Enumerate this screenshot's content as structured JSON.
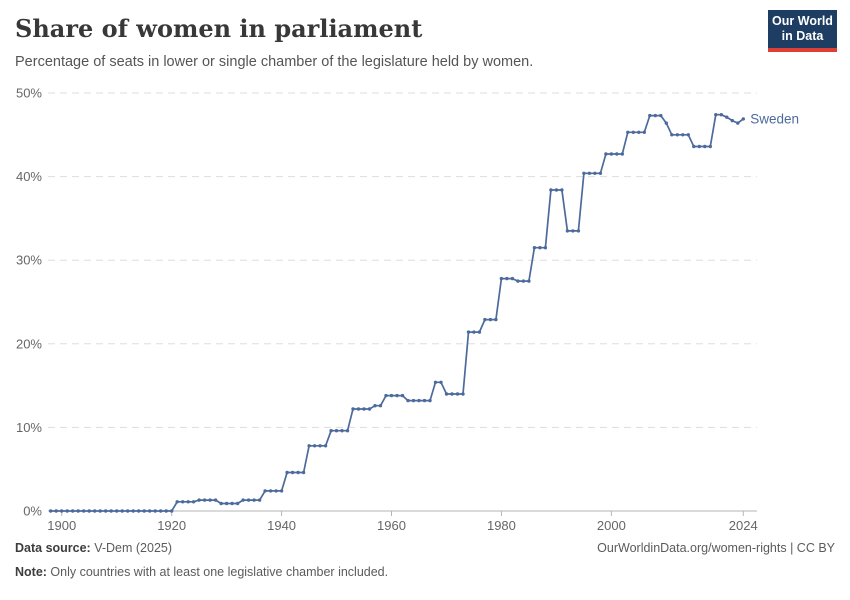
{
  "header": {
    "title": "Share of women in parliament",
    "subtitle": "Percentage of seats in lower or single chamber of the legislature held by women."
  },
  "logo": {
    "line1": "Our World",
    "line2": "in Data",
    "bg_color": "#1d3d63",
    "bar_color": "#dc3f34"
  },
  "footer": {
    "source_label": "Data source:",
    "source_value": " V-Dem (2025)",
    "note_label": "Note:",
    "note_value": " Only countries with at least one legislative chamber included.",
    "right_text": "OurWorldinData.org/women-rights | CC BY"
  },
  "chart_data": {
    "type": "line",
    "title": "Share of women in parliament",
    "xlabel": "",
    "ylabel": "",
    "xlim": [
      1897.5,
      2026.5
    ],
    "ylim": [
      0,
      50
    ],
    "x_ticks": [
      1900,
      1920,
      1940,
      1960,
      1980,
      2000,
      2024
    ],
    "y_ticks": [
      0,
      10,
      20,
      30,
      40,
      50
    ],
    "y_tick_suffix": "%",
    "grid": "dashed-horizontal",
    "legend_position": "end-of-line-label",
    "colors": {
      "line": "#4c6a9c",
      "grid": "#dddddd",
      "axis": "#b5b5b5",
      "tick_text": "#666666"
    },
    "series": [
      {
        "name": "Sweden",
        "points": [
          [
            1898,
            0
          ],
          [
            1899,
            0
          ],
          [
            1900,
            0
          ],
          [
            1901,
            0
          ],
          [
            1902,
            0
          ],
          [
            1903,
            0
          ],
          [
            1904,
            0
          ],
          [
            1905,
            0
          ],
          [
            1906,
            0
          ],
          [
            1907,
            0
          ],
          [
            1908,
            0
          ],
          [
            1909,
            0
          ],
          [
            1910,
            0
          ],
          [
            1911,
            0
          ],
          [
            1912,
            0
          ],
          [
            1913,
            0
          ],
          [
            1914,
            0
          ],
          [
            1915,
            0
          ],
          [
            1916,
            0
          ],
          [
            1917,
            0
          ],
          [
            1918,
            0
          ],
          [
            1919,
            0
          ],
          [
            1920,
            0
          ],
          [
            1921,
            1.1
          ],
          [
            1922,
            1.1
          ],
          [
            1923,
            1.1
          ],
          [
            1924,
            1.1
          ],
          [
            1925,
            1.3
          ],
          [
            1926,
            1.3
          ],
          [
            1927,
            1.3
          ],
          [
            1928,
            1.3
          ],
          [
            1929,
            0.9
          ],
          [
            1930,
            0.9
          ],
          [
            1931,
            0.9
          ],
          [
            1932,
            0.9
          ],
          [
            1933,
            1.3
          ],
          [
            1934,
            1.3
          ],
          [
            1935,
            1.3
          ],
          [
            1936,
            1.3
          ],
          [
            1937,
            2.4
          ],
          [
            1938,
            2.4
          ],
          [
            1939,
            2.4
          ],
          [
            1940,
            2.4
          ],
          [
            1941,
            4.6
          ],
          [
            1942,
            4.6
          ],
          [
            1943,
            4.6
          ],
          [
            1944,
            4.6
          ],
          [
            1945,
            7.8
          ],
          [
            1946,
            7.8
          ],
          [
            1947,
            7.8
          ],
          [
            1948,
            7.8
          ],
          [
            1949,
            9.6
          ],
          [
            1950,
            9.6
          ],
          [
            1951,
            9.6
          ],
          [
            1952,
            9.6
          ],
          [
            1953,
            12.2
          ],
          [
            1954,
            12.2
          ],
          [
            1955,
            12.2
          ],
          [
            1956,
            12.2
          ],
          [
            1957,
            12.6
          ],
          [
            1958,
            12.6
          ],
          [
            1959,
            13.8
          ],
          [
            1960,
            13.8
          ],
          [
            1961,
            13.8
          ],
          [
            1962,
            13.8
          ],
          [
            1963,
            13.2
          ],
          [
            1964,
            13.2
          ],
          [
            1965,
            13.2
          ],
          [
            1966,
            13.2
          ],
          [
            1967,
            13.2
          ],
          [
            1968,
            15.4
          ],
          [
            1969,
            15.4
          ],
          [
            1970,
            14
          ],
          [
            1971,
            14
          ],
          [
            1972,
            14
          ],
          [
            1973,
            14
          ],
          [
            1974,
            21.4
          ],
          [
            1975,
            21.4
          ],
          [
            1976,
            21.4
          ],
          [
            1977,
            22.9
          ],
          [
            1978,
            22.9
          ],
          [
            1979,
            22.9
          ],
          [
            1980,
            27.8
          ],
          [
            1981,
            27.8
          ],
          [
            1982,
            27.8
          ],
          [
            1983,
            27.5
          ],
          [
            1984,
            27.5
          ],
          [
            1985,
            27.5
          ],
          [
            1986,
            31.5
          ],
          [
            1987,
            31.5
          ],
          [
            1988,
            31.5
          ],
          [
            1989,
            38.4
          ],
          [
            1990,
            38.4
          ],
          [
            1991,
            38.4
          ],
          [
            1992,
            33.5
          ],
          [
            1993,
            33.5
          ],
          [
            1994,
            33.5
          ],
          [
            1995,
            40.4
          ],
          [
            1996,
            40.4
          ],
          [
            1997,
            40.4
          ],
          [
            1998,
            40.4
          ],
          [
            1999,
            42.7
          ],
          [
            2000,
            42.7
          ],
          [
            2001,
            42.7
          ],
          [
            2002,
            42.7
          ],
          [
            2003,
            45.3
          ],
          [
            2004,
            45.3
          ],
          [
            2005,
            45.3
          ],
          [
            2006,
            45.3
          ],
          [
            2007,
            47.3
          ],
          [
            2008,
            47.3
          ],
          [
            2009,
            47.3
          ],
          [
            2010,
            46.4
          ],
          [
            2011,
            45
          ],
          [
            2012,
            45
          ],
          [
            2013,
            45
          ],
          [
            2014,
            45
          ],
          [
            2015,
            43.6
          ],
          [
            2016,
            43.6
          ],
          [
            2017,
            43.6
          ],
          [
            2018,
            43.6
          ],
          [
            2019,
            47.4
          ],
          [
            2020,
            47.4
          ],
          [
            2021,
            47.1
          ],
          [
            2022,
            46.7
          ],
          [
            2023,
            46.4
          ],
          [
            2024,
            46.9
          ]
        ]
      }
    ]
  }
}
